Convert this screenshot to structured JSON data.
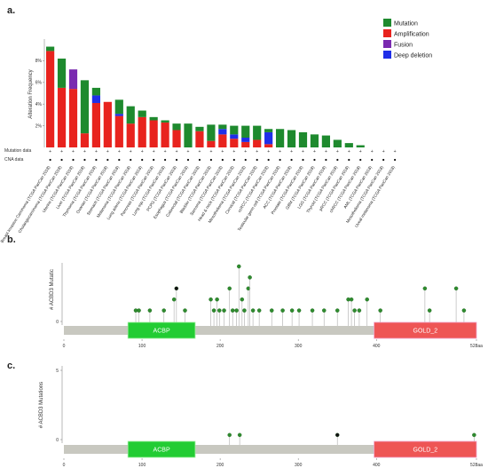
{
  "panels": {
    "a": "a.",
    "b": "b.",
    "c": "c."
  },
  "chart_data": [
    {
      "type": "bar",
      "stacked": true,
      "ylabel": "Alteration Frequency",
      "ylim": [
        0,
        10
      ],
      "yticks": [
        "2%",
        "4%",
        "6%",
        "8%"
      ],
      "ytick_values": [
        2,
        4,
        6,
        8
      ],
      "row_labels": [
        "Mutation data",
        "CNA data"
      ],
      "legend_position": "top-right",
      "colors": {
        "Mutation": "#1e8a2e",
        "Amplification": "#e8231e",
        "Fusion": "#7a2ab0",
        "Deep deletion": "#1f2ee8"
      },
      "categories": [
        "Breast Invasive Carcinoma (TCGA PanCan 2018)",
        "Cholangiocarcinoma (TCGA PanCan 2018)",
        "Uterine (TCGA PanCan 2018)",
        "Liver (TCGA PanCan 2018)",
        "Thymoma (TCGA PanCan 2018)",
        "Ovarian (TCGA PanCan 2018)",
        "Stomach (TCGA PanCan 2018)",
        "Melanoma (TCGA PanCan 2018)",
        "Lung adeno (TCGA PanCan 2018)",
        "Pancreas (TCGA PanCan 2018)",
        "Lung squ (TCGA PanCan 2018)",
        "PCPG (TCGA PanCan 2018)",
        "Esophagus (TCGA PanCan 2018)",
        "Colorectal (TCGA PanCan 2018)",
        "Bladder (TCGA PanCan 2018)",
        "Sarcoma (TCGA PanCan 2018)",
        "Head & neck (TCGA PanCan 2018)",
        "Mesothelioma (TCGA PanCan 2018)",
        "Cervical (TCGA PanCan 2018)",
        "ccRCC (TCGA PanCan 2018)",
        "Testicular germ cell (TCGA PanCan 2018)",
        "ACC (TCGA PanCan 2018)",
        "Prostate (TCGA PanCan 2018)",
        "GBM (TCGA PanCan 2018)",
        "LGG (TCGA PanCan 2018)",
        "Thyroid (TCGA PanCan 2018)",
        "pRCC (TCGA PanCan 2018)",
        "chRCC (TCGA PanCan 2018)",
        "AML (TCGA PanCan 2018)",
        "Mesothelioma (TCGA PanCan 2018)",
        "Uveal melanoma (TCGA PanCan 2018)"
      ],
      "series": [
        {
          "name": "Amplification",
          "values": [
            8.9,
            5.5,
            5.4,
            1.3,
            4.1,
            4.2,
            2.9,
            2.2,
            2.8,
            2.5,
            2.3,
            1.6,
            0.0,
            1.5,
            0.6,
            1.2,
            0.8,
            0.5,
            0.7,
            0.3,
            0.0,
            0.0,
            0.0,
            0.0,
            0.0,
            0.0,
            0.0,
            0.0,
            0.0,
            0.0,
            0.0
          ]
        },
        {
          "name": "Deep deletion",
          "values": [
            0.0,
            0.0,
            0.0,
            0.0,
            0.7,
            0.0,
            0.2,
            0.0,
            0.0,
            0.0,
            0.0,
            0.0,
            0.0,
            0.0,
            0.0,
            0.5,
            0.4,
            0.4,
            0.0,
            1.1,
            0.0,
            0.0,
            0.0,
            0.0,
            0.0,
            0.0,
            0.0,
            0.0,
            0.0,
            0.0,
            0.0
          ]
        },
        {
          "name": "Fusion",
          "values": [
            0.0,
            0.0,
            1.8,
            0.0,
            0.0,
            0.0,
            0.0,
            0.0,
            0.0,
            0.0,
            0.0,
            0.0,
            0.0,
            0.0,
            0.0,
            0.0,
            0.0,
            0.0,
            0.0,
            0.0,
            0.0,
            0.0,
            0.0,
            0.0,
            0.0,
            0.0,
            0.0,
            0.0,
            0.0,
            0.0,
            0.0
          ]
        },
        {
          "name": "Mutation",
          "values": [
            0.4,
            2.7,
            0.0,
            4.9,
            0.7,
            0.0,
            1.3,
            1.6,
            0.6,
            0.3,
            0.2,
            0.6,
            2.2,
            0.4,
            1.5,
            0.4,
            0.8,
            1.1,
            1.3,
            0.3,
            1.7,
            1.6,
            1.4,
            1.2,
            1.1,
            0.7,
            0.4,
            0.2,
            0.0,
            0.0,
            0.0
          ]
        }
      ]
    },
    {
      "type": "scatter",
      "subtype": "lollipop",
      "ylabel": "# ACBD3 Mutatic",
      "yticks": [
        "0"
      ],
      "xlim": [
        0,
        528
      ],
      "xticks": [
        "0",
        "100",
        "200",
        "300",
        "400",
        "528aa"
      ],
      "xtick_values": [
        0,
        100,
        200,
        300,
        400,
        528
      ],
      "domains": [
        {
          "name": "ACBP",
          "start": 82,
          "end": 168,
          "color": "#22cc33"
        },
        {
          "name": "GOLD_2",
          "start": 397,
          "end": 528,
          "color": "#ee5555"
        }
      ],
      "mutations": [
        {
          "pos": 92,
          "count": 1
        },
        {
          "pos": 96,
          "count": 1
        },
        {
          "pos": 110,
          "count": 1
        },
        {
          "pos": 128,
          "count": 1
        },
        {
          "pos": 141,
          "count": 2
        },
        {
          "pos": 144,
          "count": 3
        },
        {
          "pos": 155,
          "count": 1
        },
        {
          "pos": 188,
          "count": 2
        },
        {
          "pos": 192,
          "count": 1
        },
        {
          "pos": 196,
          "count": 2
        },
        {
          "pos": 199,
          "count": 1
        },
        {
          "pos": 205,
          "count": 1
        },
        {
          "pos": 212,
          "count": 3
        },
        {
          "pos": 216,
          "count": 1
        },
        {
          "pos": 221,
          "count": 1
        },
        {
          "pos": 224,
          "count": 5
        },
        {
          "pos": 228,
          "count": 2
        },
        {
          "pos": 231,
          "count": 1
        },
        {
          "pos": 236,
          "count": 3
        },
        {
          "pos": 238,
          "count": 4
        },
        {
          "pos": 242,
          "count": 1
        },
        {
          "pos": 250,
          "count": 1
        },
        {
          "pos": 266,
          "count": 1
        },
        {
          "pos": 280,
          "count": 1
        },
        {
          "pos": 292,
          "count": 1
        },
        {
          "pos": 301,
          "count": 1
        },
        {
          "pos": 318,
          "count": 1
        },
        {
          "pos": 333,
          "count": 1
        },
        {
          "pos": 350,
          "count": 1
        },
        {
          "pos": 364,
          "count": 2
        },
        {
          "pos": 368,
          "count": 2
        },
        {
          "pos": 372,
          "count": 1
        },
        {
          "pos": 378,
          "count": 1
        },
        {
          "pos": 388,
          "count": 2
        },
        {
          "pos": 405,
          "count": 1
        },
        {
          "pos": 462,
          "count": 3
        },
        {
          "pos": 468,
          "count": 1
        },
        {
          "pos": 502,
          "count": 3
        },
        {
          "pos": 512,
          "count": 1
        }
      ]
    },
    {
      "type": "scatter",
      "subtype": "lollipop",
      "ylabel": "# ACBD3 Mutations",
      "yticks": [
        "0",
        "5"
      ],
      "ylim": [
        0,
        5
      ],
      "xlim": [
        0,
        528
      ],
      "xticks": [
        "0",
        "100",
        "200",
        "300",
        "400",
        "528aa"
      ],
      "xtick_values": [
        0,
        100,
        200,
        300,
        400,
        528
      ],
      "domains": [
        {
          "name": "ACBP",
          "start": 82,
          "end": 168,
          "color": "#22cc33"
        },
        {
          "name": "GOLD_2",
          "start": 397,
          "end": 528,
          "color": "#ee5555"
        }
      ],
      "mutations": [
        {
          "pos": 212,
          "count": 1
        },
        {
          "pos": 225,
          "count": 1
        },
        {
          "pos": 350,
          "count": 1
        },
        {
          "pos": 525,
          "count": 1
        }
      ]
    }
  ]
}
